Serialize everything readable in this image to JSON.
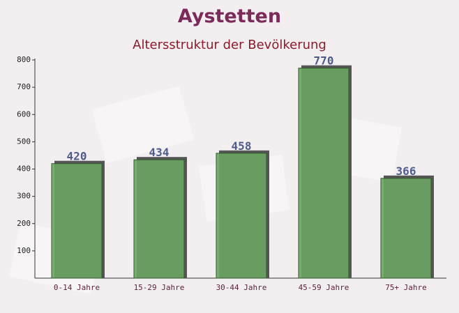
{
  "chart_data": {
    "type": "bar",
    "title": "Aystetten",
    "subtitle": "Altersstruktur der Bevölkerung",
    "categories": [
      "0-14 Jahre",
      "15-29 Jahre",
      "30-44 Jahre",
      "45-59 Jahre",
      "75+ Jahre"
    ],
    "values": [
      420,
      434,
      458,
      770,
      366
    ],
    "color": "#6aa463",
    "ylim": [
      0,
      800
    ],
    "yticks": [
      100,
      200,
      300,
      400,
      500,
      600,
      700,
      800
    ],
    "grid": false
  }
}
